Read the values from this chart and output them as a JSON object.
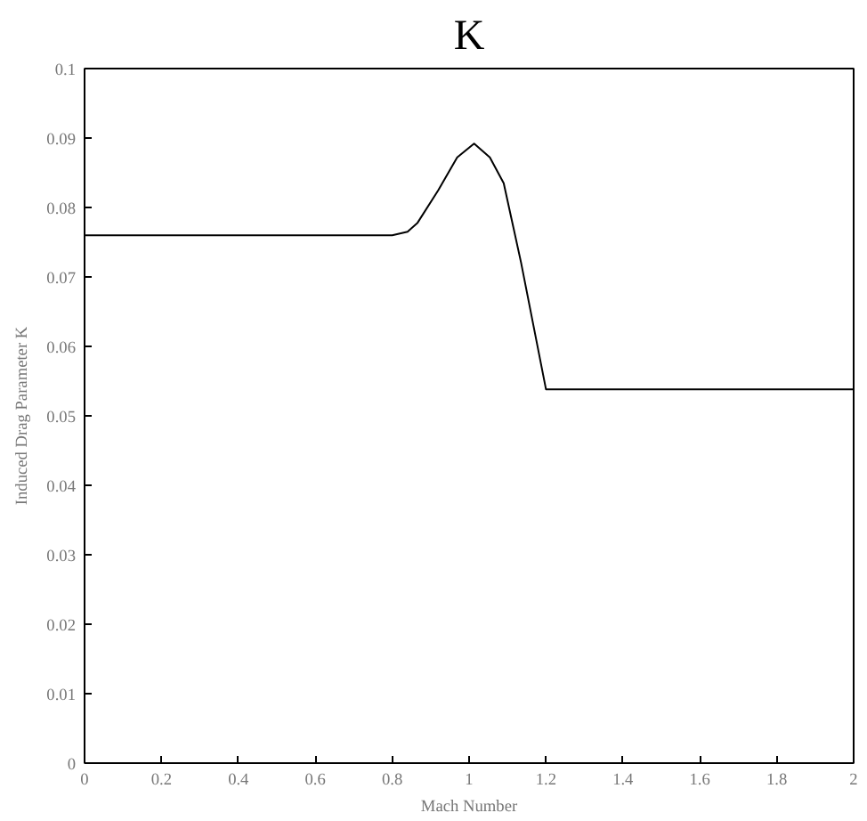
{
  "chart_data": {
    "type": "line",
    "title": "K",
    "xlabel": "Mach Number",
    "ylabel": "Induced Drag Parameter K",
    "x": [
      0,
      0.8,
      0.84,
      0.866,
      0.92,
      0.969,
      1.013,
      1.054,
      1.09,
      1.135,
      1.2,
      2
    ],
    "series": [
      {
        "color": "#000000",
        "values": [
          0.076,
          0.076,
          0.0765,
          0.0778,
          0.0825,
          0.0872,
          0.0892,
          0.0872,
          0.0835,
          0.0721,
          0.0538,
          0.0538
        ]
      }
    ],
    "xlim": [
      0,
      2
    ],
    "ylim": [
      0,
      0.1
    ],
    "xticks": [
      0,
      0.2,
      0.4,
      0.6,
      0.8,
      1,
      1.2,
      1.4,
      1.6,
      1.8,
      2
    ],
    "yticks": [
      0,
      0.01,
      0.02,
      0.03,
      0.04,
      0.05,
      0.06,
      0.07,
      0.08,
      0.09,
      0.1
    ],
    "grid": false,
    "marker": "none",
    "line_style": "solid"
  }
}
